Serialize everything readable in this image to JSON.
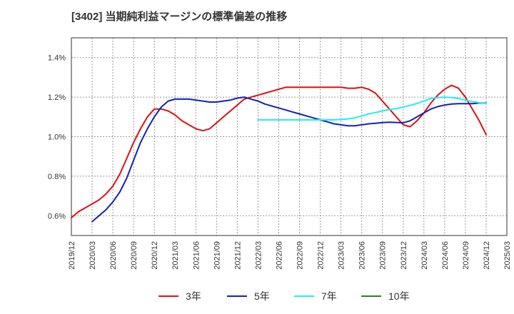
{
  "title": "[3402]  当期純利益マージンの標準偏差の推移",
  "chart_data": {
    "type": "line",
    "title": "[3402]  当期純利益マージンの標準偏差の推移",
    "xlabel": "",
    "ylabel": "",
    "x_ticks": [
      "2019/12",
      "2020/03",
      "2020/06",
      "2020/09",
      "2020/12",
      "2021/03",
      "2021/06",
      "2021/09",
      "2021/12",
      "2022/03",
      "2022/06",
      "2022/09",
      "2022/12",
      "2023/03",
      "2023/06",
      "2023/09",
      "2023/12",
      "2024/03",
      "2024/06",
      "2024/09",
      "2024/12",
      "2025/03"
    ],
    "y_ticks": [
      "0.6%",
      "0.8%",
      "1.0%",
      "1.2%",
      "1.4%"
    ],
    "y_tick_values": [
      0.6,
      0.8,
      1.0,
      1.2,
      1.4
    ],
    "ylim": [
      0.5,
      1.5
    ],
    "xlim": [
      "2019/12",
      "2025/03"
    ],
    "grid": true,
    "legend_position": "bottom",
    "series": [
      {
        "name": "3年",
        "color": "#dd1111",
        "points": [
          [
            "2019/12",
            0.59
          ],
          [
            "2020/01",
            0.62
          ],
          [
            "2020/02",
            0.64
          ],
          [
            "2020/03",
            0.66
          ],
          [
            "2020/04",
            0.68
          ],
          [
            "2020/05",
            0.71
          ],
          [
            "2020/06",
            0.75
          ],
          [
            "2020/07",
            0.81
          ],
          [
            "2020/08",
            0.89
          ],
          [
            "2020/09",
            0.97
          ],
          [
            "2020/10",
            1.04
          ],
          [
            "2020/11",
            1.1
          ],
          [
            "2020/12",
            1.14
          ],
          [
            "2021/01",
            1.14
          ],
          [
            "2021/02",
            1.13
          ],
          [
            "2021/03",
            1.11
          ],
          [
            "2021/04",
            1.08
          ],
          [
            "2021/05",
            1.06
          ],
          [
            "2021/06",
            1.04
          ],
          [
            "2021/07",
            1.03
          ],
          [
            "2021/08",
            1.04
          ],
          [
            "2021/09",
            1.07
          ],
          [
            "2021/10",
            1.1
          ],
          [
            "2021/11",
            1.13
          ],
          [
            "2021/12",
            1.16
          ],
          [
            "2022/01",
            1.19
          ],
          [
            "2022/02",
            1.2
          ],
          [
            "2022/03",
            1.21
          ],
          [
            "2022/04",
            1.22
          ],
          [
            "2022/05",
            1.23
          ],
          [
            "2022/06",
            1.24
          ],
          [
            "2022/07",
            1.25
          ],
          [
            "2022/08",
            1.25
          ],
          [
            "2022/09",
            1.25
          ],
          [
            "2022/10",
            1.25
          ],
          [
            "2022/11",
            1.25
          ],
          [
            "2022/12",
            1.25
          ],
          [
            "2023/01",
            1.25
          ],
          [
            "2023/02",
            1.25
          ],
          [
            "2023/03",
            1.25
          ],
          [
            "2023/04",
            1.245
          ],
          [
            "2023/05",
            1.245
          ],
          [
            "2023/06",
            1.25
          ],
          [
            "2023/07",
            1.24
          ],
          [
            "2023/08",
            1.22
          ],
          [
            "2023/09",
            1.18
          ],
          [
            "2023/10",
            1.14
          ],
          [
            "2023/11",
            1.1
          ],
          [
            "2023/12",
            1.06
          ],
          [
            "2024/01",
            1.05
          ],
          [
            "2024/02",
            1.08
          ],
          [
            "2024/03",
            1.12
          ],
          [
            "2024/04",
            1.17
          ],
          [
            "2024/05",
            1.21
          ],
          [
            "2024/06",
            1.24
          ],
          [
            "2024/07",
            1.26
          ],
          [
            "2024/08",
            1.245
          ],
          [
            "2024/09",
            1.2
          ],
          [
            "2024/10",
            1.14
          ],
          [
            "2024/11",
            1.08
          ],
          [
            "2024/12",
            1.01
          ]
        ]
      },
      {
        "name": "5年",
        "color": "#1122bb",
        "points": [
          [
            "2020/03",
            0.57
          ],
          [
            "2020/04",
            0.6
          ],
          [
            "2020/05",
            0.63
          ],
          [
            "2020/06",
            0.67
          ],
          [
            "2020/07",
            0.72
          ],
          [
            "2020/08",
            0.79
          ],
          [
            "2020/09",
            0.88
          ],
          [
            "2020/10",
            0.97
          ],
          [
            "2020/11",
            1.04
          ],
          [
            "2020/12",
            1.1
          ],
          [
            "2021/01",
            1.15
          ],
          [
            "2021/02",
            1.18
          ],
          [
            "2021/03",
            1.19
          ],
          [
            "2021/04",
            1.19
          ],
          [
            "2021/05",
            1.19
          ],
          [
            "2021/06",
            1.185
          ],
          [
            "2021/07",
            1.18
          ],
          [
            "2021/08",
            1.175
          ],
          [
            "2021/09",
            1.175
          ],
          [
            "2021/10",
            1.18
          ],
          [
            "2021/11",
            1.185
          ],
          [
            "2021/12",
            1.195
          ],
          [
            "2022/01",
            1.2
          ],
          [
            "2022/02",
            1.19
          ],
          [
            "2022/03",
            1.18
          ],
          [
            "2022/04",
            1.165
          ],
          [
            "2022/05",
            1.155
          ],
          [
            "2022/06",
            1.145
          ],
          [
            "2022/07",
            1.135
          ],
          [
            "2022/08",
            1.125
          ],
          [
            "2022/09",
            1.115
          ],
          [
            "2022/10",
            1.105
          ],
          [
            "2022/11",
            1.095
          ],
          [
            "2022/12",
            1.085
          ],
          [
            "2023/01",
            1.075
          ],
          [
            "2023/02",
            1.065
          ],
          [
            "2023/03",
            1.06
          ],
          [
            "2023/04",
            1.055
          ],
          [
            "2023/05",
            1.055
          ],
          [
            "2023/06",
            1.06
          ],
          [
            "2023/07",
            1.065
          ],
          [
            "2023/08",
            1.068
          ],
          [
            "2023/09",
            1.071
          ],
          [
            "2023/10",
            1.073
          ],
          [
            "2023/11",
            1.072
          ],
          [
            "2023/12",
            1.07
          ],
          [
            "2024/01",
            1.08
          ],
          [
            "2024/02",
            1.1
          ],
          [
            "2024/03",
            1.12
          ],
          [
            "2024/04",
            1.14
          ],
          [
            "2024/05",
            1.152
          ],
          [
            "2024/06",
            1.16
          ],
          [
            "2024/07",
            1.165
          ],
          [
            "2024/08",
            1.167
          ],
          [
            "2024/09",
            1.167
          ],
          [
            "2024/10",
            1.167
          ],
          [
            "2024/11",
            1.17
          ],
          [
            "2024/12",
            1.17
          ]
        ]
      },
      {
        "name": "7年",
        "color": "#22eeee",
        "points": [
          [
            "2022/03",
            1.085
          ],
          [
            "2022/06",
            1.085
          ],
          [
            "2022/09",
            1.085
          ],
          [
            "2022/12",
            1.085
          ],
          [
            "2023/01",
            1.085
          ],
          [
            "2023/02",
            1.085
          ],
          [
            "2023/03",
            1.087
          ],
          [
            "2023/04",
            1.09
          ],
          [
            "2023/05",
            1.095
          ],
          [
            "2023/06",
            1.105
          ],
          [
            "2023/07",
            1.115
          ],
          [
            "2023/08",
            1.122
          ],
          [
            "2023/09",
            1.13
          ],
          [
            "2023/10",
            1.137
          ],
          [
            "2023/11",
            1.142
          ],
          [
            "2023/12",
            1.15
          ],
          [
            "2024/01",
            1.158
          ],
          [
            "2024/02",
            1.168
          ],
          [
            "2024/03",
            1.18
          ],
          [
            "2024/04",
            1.193
          ],
          [
            "2024/05",
            1.198
          ],
          [
            "2024/06",
            1.2
          ],
          [
            "2024/07",
            1.198
          ],
          [
            "2024/08",
            1.193
          ],
          [
            "2024/09",
            1.185
          ],
          [
            "2024/10",
            1.178
          ],
          [
            "2024/11",
            1.172
          ],
          [
            "2024/12",
            1.168
          ]
        ]
      },
      {
        "name": "10年",
        "color": "#228822",
        "points": []
      }
    ]
  }
}
